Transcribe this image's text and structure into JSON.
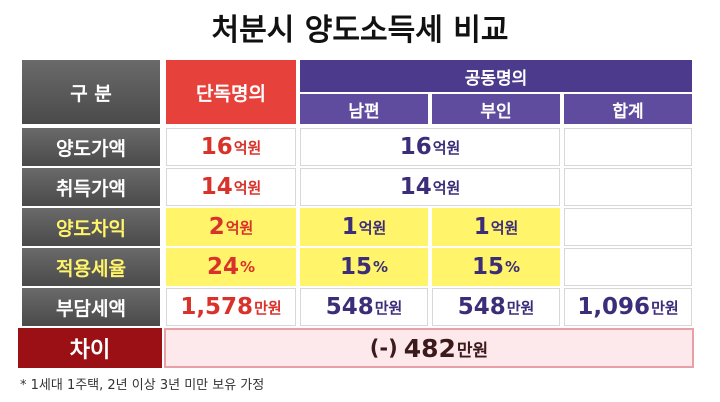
{
  "title": "처분시 양도소득세 비교",
  "table": {
    "header": {
      "category": "구 분",
      "single": "단독명의",
      "joint": "공동명의",
      "husband": "남편",
      "wife": "부인",
      "total": "합계"
    },
    "rows": [
      {
        "label": "양도가액",
        "cells": [
          {
            "num": "16",
            "unit": "억원"
          },
          {
            "num": "16",
            "unit": "억원"
          }
        ]
      },
      {
        "label": "취득가액",
        "cells": [
          {
            "num": "14",
            "unit": "억원"
          },
          {
            "num": "14",
            "unit": "억원"
          }
        ]
      },
      {
        "label": "양도차익",
        "cells": [
          {
            "num": "2",
            "unit": "억원"
          },
          {
            "num": "1",
            "unit": "억원"
          },
          {
            "num": "1",
            "unit": "억원"
          }
        ]
      },
      {
        "label": "적용세율",
        "cells": [
          {
            "num": "24",
            "unit": "%"
          },
          {
            "num": "15",
            "unit": "%"
          },
          {
            "num": "15",
            "unit": "%"
          }
        ]
      },
      {
        "label": "부담세액",
        "cells": [
          {
            "num": "1,578",
            "unit": "만원"
          },
          {
            "num": "548",
            "unit": "만원"
          },
          {
            "num": "548",
            "unit": "만원"
          },
          {
            "num": "1,096",
            "unit": "만원"
          }
        ]
      }
    ]
  },
  "difference": {
    "label": "차이",
    "prefix": "(-)",
    "num": "482",
    "unit": "만원"
  },
  "footnote": "* 1세대 1주택, 2년 이상 3년 미만 보유 가정"
}
